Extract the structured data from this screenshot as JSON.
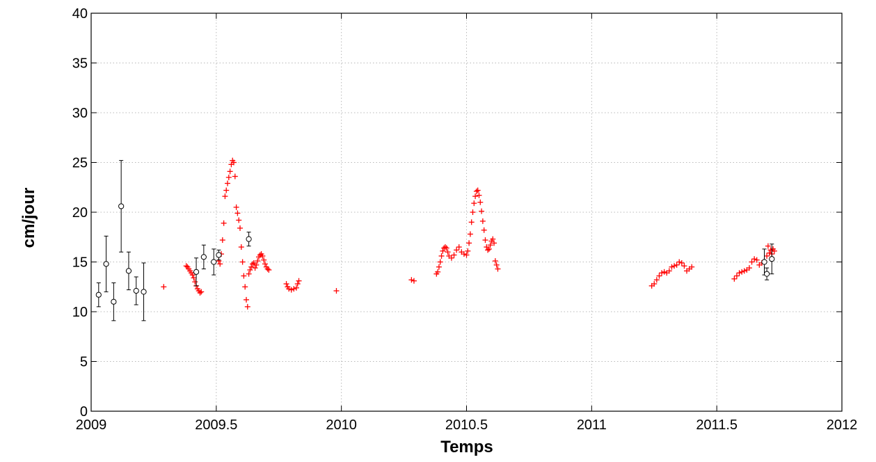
{
  "chart_data": {
    "type": "scatter",
    "title": "",
    "xlabel": "Temps",
    "ylabel": "cm/jour",
    "xlim": [
      2009,
      2012
    ],
    "ylim": [
      0,
      40
    ],
    "grid": true,
    "xticks": [
      2009,
      2009.5,
      2010,
      2010.5,
      2011,
      2011.5,
      2012
    ],
    "xtick_labels": [
      "2009",
      "2009.5",
      "2010",
      "2010.5",
      "2011",
      "2011.5",
      "2012"
    ],
    "yticks": [
      0,
      5,
      10,
      15,
      20,
      25,
      30,
      35,
      40
    ],
    "ytick_labels": [
      "0",
      "5",
      "10",
      "15",
      "20",
      "25",
      "30",
      "35",
      "40"
    ],
    "series": [
      {
        "marker": "plus",
        "color": "#ff0000",
        "x": [
          2009.29,
          2009.38,
          2009.385,
          2009.39,
          2009.395,
          2009.4,
          2009.405,
          2009.41,
          2009.415,
          2009.42,
          2009.425,
          2009.43,
          2009.435,
          2009.44,
          2009.51,
          2009.515,
          2009.52,
          2009.525,
          2009.53,
          2009.535,
          2009.54,
          2009.545,
          2009.55,
          2009.555,
          2009.56,
          2009.565,
          2009.57,
          2009.575,
          2009.58,
          2009.585,
          2009.59,
          2009.595,
          2009.6,
          2009.605,
          2009.61,
          2009.615,
          2009.62,
          2009.625,
          2009.63,
          2009.635,
          2009.64,
          2009.645,
          2009.65,
          2009.655,
          2009.66,
          2009.665,
          2009.67,
          2009.675,
          2009.68,
          2009.685,
          2009.69,
          2009.695,
          2009.7,
          2009.705,
          2009.71,
          2009.78,
          2009.785,
          2009.79,
          2009.8,
          2009.81,
          2009.82,
          2009.825,
          2009.83,
          2009.98,
          2010.28,
          2010.29,
          2010.38,
          2010.385,
          2010.39,
          2010.395,
          2010.4,
          2010.405,
          2010.41,
          2010.415,
          2010.42,
          2010.425,
          2010.43,
          2010.44,
          2010.45,
          2010.46,
          2010.47,
          2010.48,
          2010.49,
          2010.5,
          2010.505,
          2010.51,
          2010.515,
          2010.52,
          2010.525,
          2010.53,
          2010.535,
          2010.54,
          2010.545,
          2010.55,
          2010.555,
          2010.56,
          2010.565,
          2010.57,
          2010.575,
          2010.58,
          2010.585,
          2010.59,
          2010.595,
          2010.6,
          2010.605,
          2010.61,
          2010.615,
          2010.62,
          2010.625,
          2011.24,
          2011.25,
          2011.26,
          2011.27,
          2011.28,
          2011.29,
          2011.3,
          2011.31,
          2011.32,
          2011.33,
          2011.34,
          2011.35,
          2011.36,
          2011.37,
          2011.38,
          2011.39,
          2011.4,
          2011.57,
          2011.58,
          2011.59,
          2011.6,
          2011.61,
          2011.62,
          2011.63,
          2011.64,
          2011.65,
          2011.66,
          2011.67,
          2011.68,
          2011.69,
          2011.7,
          2011.705,
          2011.71,
          2011.715,
          2011.72,
          2011.725,
          2011.73
        ],
        "y": [
          12.5,
          14.6,
          14.5,
          14.3,
          14.1,
          13.9,
          13.7,
          13.4,
          13.0,
          12.6,
          12.3,
          12.1,
          11.9,
          12.0,
          15.1,
          14.8,
          15.8,
          17.2,
          18.9,
          21.6,
          22.2,
          22.9,
          23.5,
          24.1,
          24.8,
          25.2,
          25.0,
          23.6,
          20.5,
          19.9,
          19.2,
          18.4,
          16.5,
          15.0,
          13.6,
          12.5,
          11.2,
          10.5,
          13.8,
          14.2,
          14.5,
          14.8,
          14.9,
          14.4,
          14.7,
          15.1,
          15.5,
          15.7,
          15.8,
          15.6,
          15.2,
          14.8,
          14.5,
          14.3,
          14.2,
          12.8,
          12.5,
          12.3,
          12.2,
          12.3,
          12.4,
          12.8,
          13.1,
          12.1,
          13.2,
          13.1,
          13.8,
          14.0,
          14.5,
          15.0,
          15.6,
          16.1,
          16.4,
          16.5,
          16.4,
          16.0,
          15.6,
          15.4,
          15.7,
          16.2,
          16.5,
          16.0,
          15.8,
          15.7,
          16.1,
          16.9,
          17.8,
          19.0,
          20.0,
          20.9,
          21.6,
          22.1,
          22.2,
          21.7,
          21.0,
          20.1,
          19.1,
          18.2,
          17.2,
          16.5,
          16.2,
          16.3,
          16.7,
          17.1,
          17.3,
          16.9,
          15.1,
          14.7,
          14.3,
          12.6,
          12.8,
          13.2,
          13.6,
          13.9,
          14.0,
          13.9,
          14.1,
          14.5,
          14.6,
          14.7,
          15.0,
          14.9,
          14.6,
          14.1,
          14.3,
          14.5,
          13.3,
          13.6,
          13.9,
          14.0,
          14.1,
          14.2,
          14.4,
          15.0,
          15.3,
          15.2,
          14.7,
          14.9,
          15.1,
          15.6,
          16.6,
          15.9,
          16.2,
          15.8,
          16.3,
          16.1
        ]
      },
      {
        "marker": "circle",
        "color": "#000000",
        "errorbars": true,
        "x": [
          2009.03,
          2009.06,
          2009.09,
          2009.12,
          2009.15,
          2009.18,
          2009.21,
          2009.42,
          2009.45,
          2009.49,
          2009.51,
          2009.63,
          2011.69,
          2011.7,
          2011.72
        ],
        "y": [
          11.7,
          14.8,
          11.0,
          20.6,
          14.1,
          12.1,
          12.0,
          14.0,
          15.5,
          15.0,
          15.7,
          17.3,
          15.0,
          13.8,
          15.3
        ],
        "err": [
          1.2,
          2.8,
          1.9,
          4.6,
          1.9,
          1.4,
          2.9,
          1.4,
          1.2,
          1.3,
          0.5,
          0.7,
          1.3,
          0.6,
          1.5
        ]
      }
    ]
  }
}
